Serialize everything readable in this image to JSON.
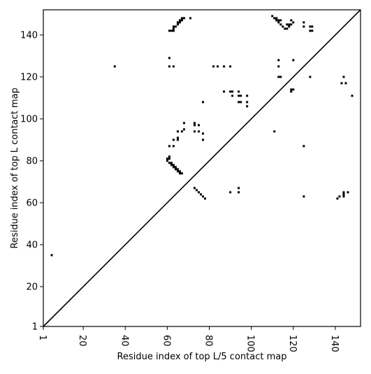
{
  "chart_data": {
    "type": "scatter",
    "title": "",
    "xlabel": "Residue index of top L/5 contact map",
    "ylabel": "Residue index of top L contact map",
    "xlim": [
      1,
      152
    ],
    "ylim": [
      1,
      152
    ],
    "xticks": [
      1,
      20,
      40,
      60,
      80,
      100,
      120,
      140
    ],
    "yticks": [
      1,
      20,
      40,
      60,
      80,
      100,
      120,
      140
    ],
    "grid": false,
    "diagonal": true,
    "series": [
      {
        "values": [
          [
            5,
            35
          ],
          [
            35,
            125
          ],
          [
            61,
            129
          ],
          [
            61,
            125
          ],
          [
            63,
            125
          ],
          [
            61,
            142
          ],
          [
            62,
            142
          ],
          [
            63,
            142
          ],
          [
            63,
            143
          ],
          [
            63,
            144
          ],
          [
            64,
            144
          ],
          [
            65,
            145
          ],
          [
            65,
            146
          ],
          [
            66,
            146
          ],
          [
            66,
            147
          ],
          [
            67,
            147
          ],
          [
            67,
            148
          ],
          [
            68,
            148
          ],
          [
            71,
            148
          ],
          [
            60,
            80
          ],
          [
            60,
            81
          ],
          [
            61,
            81
          ],
          [
            61,
            82
          ],
          [
            61,
            79
          ],
          [
            62,
            79
          ],
          [
            62,
            78
          ],
          [
            63,
            78
          ],
          [
            63,
            77
          ],
          [
            64,
            77
          ],
          [
            64,
            76
          ],
          [
            65,
            76
          ],
          [
            65,
            75
          ],
          [
            66,
            75
          ],
          [
            66,
            74
          ],
          [
            67,
            74
          ],
          [
            61,
            87
          ],
          [
            63,
            87
          ],
          [
            63,
            90
          ],
          [
            65,
            90
          ],
          [
            65,
            91
          ],
          [
            65,
            94
          ],
          [
            67,
            94
          ],
          [
            68,
            95
          ],
          [
            68,
            98
          ],
          [
            73,
            98
          ],
          [
            73,
            97
          ],
          [
            75,
            97
          ],
          [
            75,
            94
          ],
          [
            73,
            94
          ],
          [
            77,
            93
          ],
          [
            77,
            90
          ],
          [
            77,
            108
          ],
          [
            73,
            67
          ],
          [
            74,
            66
          ],
          [
            75,
            65
          ],
          [
            76,
            64
          ],
          [
            77,
            63
          ],
          [
            78,
            62
          ],
          [
            82,
            125
          ],
          [
            84,
            125
          ],
          [
            87,
            125
          ],
          [
            90,
            125
          ],
          [
            87,
            113
          ],
          [
            90,
            113
          ],
          [
            91,
            113
          ],
          [
            94,
            113
          ],
          [
            91,
            111
          ],
          [
            94,
            111
          ],
          [
            95,
            111
          ],
          [
            98,
            111
          ],
          [
            94,
            108
          ],
          [
            95,
            108
          ],
          [
            98,
            108
          ],
          [
            98,
            106
          ],
          [
            90,
            65
          ],
          [
            94,
            65
          ],
          [
            94,
            67
          ],
          [
            110,
            149
          ],
          [
            111,
            148
          ],
          [
            112,
            147
          ],
          [
            113,
            146
          ],
          [
            114,
            145
          ],
          [
            115,
            144
          ],
          [
            116,
            143
          ],
          [
            117,
            143
          ],
          [
            118,
            144
          ],
          [
            119,
            145
          ],
          [
            120,
            146
          ],
          [
            117,
            145
          ],
          [
            118,
            145
          ],
          [
            119,
            147
          ],
          [
            113,
            147
          ],
          [
            114,
            147
          ],
          [
            112,
            148
          ],
          [
            113,
            128
          ],
          [
            113,
            125
          ],
          [
            113,
            120
          ],
          [
            114,
            120
          ],
          [
            120,
            128
          ],
          [
            119,
            114
          ],
          [
            120,
            114
          ],
          [
            119,
            113
          ],
          [
            111,
            94
          ],
          [
            125,
            146
          ],
          [
            125,
            144
          ],
          [
            128,
            144
          ],
          [
            129,
            144
          ],
          [
            128,
            142
          ],
          [
            129,
            142
          ],
          [
            128,
            120
          ],
          [
            125,
            87
          ],
          [
            125,
            63
          ],
          [
            141,
            62
          ],
          [
            142,
            63
          ],
          [
            144,
            63
          ],
          [
            144,
            64
          ],
          [
            144,
            65
          ],
          [
            146,
            65
          ],
          [
            144,
            120
          ],
          [
            143,
            117
          ],
          [
            145,
            117
          ],
          [
            148,
            111
          ]
        ]
      }
    ]
  }
}
